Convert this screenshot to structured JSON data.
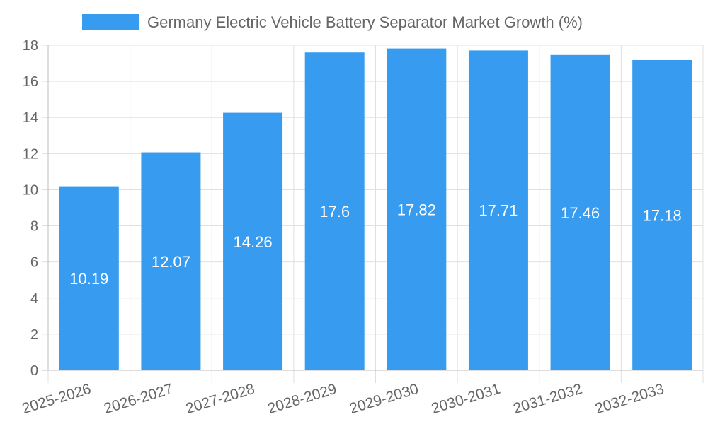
{
  "chart_data": {
    "type": "bar",
    "categories": [
      "2025-2026",
      "2026-2027",
      "2027-2028",
      "2028-2029",
      "2029-2030",
      "2030-2031",
      "2031-2032",
      "2032-2033"
    ],
    "series": [
      {
        "name": "Germany Electric Vehicle Battery Separator Market Growth (%)",
        "values": [
          10.19,
          12.07,
          14.26,
          17.6,
          17.82,
          17.71,
          17.46,
          17.18
        ]
      }
    ],
    "data_labels": [
      "10.19",
      "12.07",
      "14.26",
      "17.6",
      "17.82",
      "17.71",
      "17.46",
      "17.18"
    ],
    "y_ticks": [
      0,
      2,
      4,
      6,
      8,
      10,
      12,
      14,
      16,
      18
    ],
    "ylim": [
      0,
      18
    ],
    "grid": true,
    "legend_position": "top-center",
    "bar_color": "#379cf0",
    "legend_swatch_color": "#379cf0"
  }
}
